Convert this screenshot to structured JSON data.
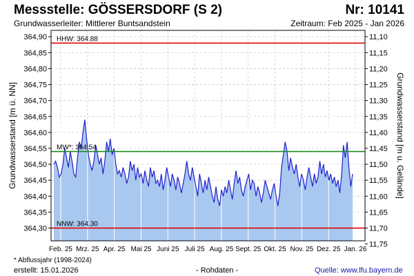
{
  "header": {
    "title": "Messstelle: GÖSSERSDORF (S 2)",
    "number": "Nr: 10141",
    "aquifer": "Grundwasserleiter:   Mittlerer Buntsandstein",
    "period": "Zeitraum: Feb 2025 - Jan 2026"
  },
  "footer": {
    "footnote": "* Abflussjahr (1998-2024)",
    "created": "erstellt:  15.01.2026",
    "rawdata": "- Rohdaten -",
    "source": "Quelle:  www.lfu.bayern.de"
  },
  "colors": {
    "fill": "#a9c8ef",
    "line": "#1f1fd0",
    "hhw": "#e00000",
    "nnw": "#e00000",
    "mw": "#1a8a1a",
    "grid": "#c8c8c8"
  },
  "chart_data": {
    "type": "area",
    "ylabel": "Grundwasserstand [m ü. NN]",
    "y2label": "Grundwasserstand [m u. Gelände]",
    "ylim": [
      364.26,
      364.92
    ],
    "y_ticks": [
      "364,90",
      "364,85",
      "364,80",
      "364,75",
      "364,70",
      "364,65",
      "364,60",
      "364,55",
      "364,50",
      "364,45",
      "364,40",
      "364,35",
      "364,30"
    ],
    "y_tick_values": [
      364.9,
      364.85,
      364.8,
      364.75,
      364.7,
      364.65,
      364.6,
      364.55,
      364.5,
      364.45,
      364.4,
      364.35,
      364.3
    ],
    "y2_ticks": [
      "11,10",
      "11,15",
      "11,20",
      "11,25",
      "11,30",
      "11,35",
      "11,40",
      "11,45",
      "11,50",
      "11,55",
      "11,60",
      "11,65",
      "11,70",
      "11,75"
    ],
    "y2_tick_values": [
      11.1,
      11.15,
      11.2,
      11.25,
      11.3,
      11.35,
      11.4,
      11.45,
      11.5,
      11.55,
      11.6,
      11.65,
      11.7,
      11.75
    ],
    "ground_level": 376.0,
    "x_ticks": [
      "Feb. 25",
      "Mrz. 25",
      "Apr. 25",
      "Mai 25",
      "Juni 25",
      "Juli 25",
      "Aug. 25",
      "Sept. 25",
      "Okt. 25",
      "Nov. 25",
      "Dez. 25",
      "Jan. 26"
    ],
    "reference_lines": [
      {
        "key": "hhw",
        "label": "HHW: 364.88",
        "value": 364.88
      },
      {
        "key": "mw",
        "label": "MW*: 364.54",
        "value": 364.54
      },
      {
        "key": "nnw",
        "label": "NNW: 364.30",
        "value": 364.3
      }
    ],
    "series": [
      {
        "values": [
          364.5,
          364.51,
          364.49,
          364.46,
          364.47,
          364.5,
          364.55,
          364.52,
          364.49,
          364.54,
          364.51,
          364.47,
          364.46,
          364.52,
          364.57,
          364.55,
          364.6,
          364.64,
          364.58,
          364.53,
          364.5,
          364.48,
          364.51,
          364.56,
          364.53,
          364.5,
          364.52,
          364.47,
          364.51,
          364.57,
          364.54,
          364.58,
          364.53,
          364.55,
          364.5,
          364.47,
          364.48,
          364.46,
          364.49,
          364.47,
          364.44,
          364.46,
          364.51,
          364.48,
          364.5,
          364.45,
          364.49,
          364.46,
          364.47,
          364.44,
          364.48,
          364.45,
          364.43,
          364.49,
          364.46,
          364.48,
          364.44,
          364.45,
          364.43,
          364.47,
          364.42,
          364.45,
          364.49,
          364.46,
          364.43,
          364.47,
          364.45,
          364.42,
          364.46,
          364.44,
          364.41,
          364.44,
          364.47,
          364.51,
          364.47,
          364.45,
          364.49,
          364.46,
          364.43,
          364.4,
          364.47,
          364.44,
          364.41,
          364.45,
          364.42,
          364.46,
          364.43,
          364.4,
          364.38,
          364.43,
          364.39,
          364.37,
          364.42,
          364.4,
          364.43,
          364.41,
          364.45,
          364.42,
          364.39,
          364.44,
          364.48,
          364.44,
          364.46,
          364.42,
          364.4,
          364.43,
          364.45,
          364.47,
          364.42,
          364.45,
          364.44,
          364.4,
          364.43,
          364.41,
          364.38,
          364.41,
          364.45,
          364.43,
          364.41,
          364.39,
          364.42,
          364.44,
          364.4,
          364.37,
          364.41,
          364.49,
          364.53,
          364.57,
          364.54,
          364.48,
          364.52,
          364.49,
          364.47,
          364.5,
          364.46,
          364.43,
          364.47,
          364.45,
          364.42,
          364.46,
          364.49,
          364.46,
          364.43,
          364.47,
          364.44,
          364.46,
          364.51,
          364.47,
          364.5,
          364.46,
          364.48,
          364.45,
          364.47,
          364.44,
          364.46,
          364.43,
          364.45,
          364.41,
          364.47,
          364.56,
          364.52,
          364.57,
          364.49,
          364.43,
          364.47
        ]
      }
    ]
  }
}
